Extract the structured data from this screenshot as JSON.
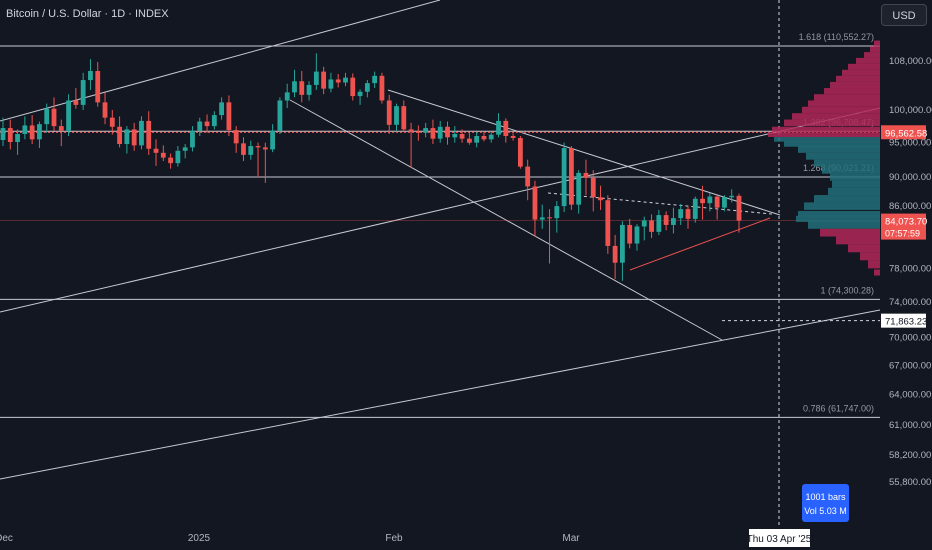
{
  "header": {
    "title": "Bitcoin / U.S. Dollar · 1D · INDEX",
    "currency": "USD"
  },
  "badge": {
    "bars": "1001 bars",
    "vol": "Vol 5.03 M"
  },
  "colors": {
    "background": "#131722",
    "up": "#26a69a",
    "down": "#ef5350",
    "grid_line": "#b2b5be",
    "profile": "#b02757",
    "profile_value_area": "#22707a",
    "badge_blue": "#2962ff"
  },
  "chart_data": {
    "type": "candlestick",
    "title": "Bitcoin / U.S. Dollar · 1D · INDEX",
    "y_scale": "log",
    "ylim": [
      54000,
      112000
    ],
    "y_ticks": [
      {
        "value": 108000,
        "label": "108,000.00"
      },
      {
        "value": 100000,
        "label": "100,000.00"
      },
      {
        "value": 95000,
        "label": "95,000.00"
      },
      {
        "value": 90000,
        "label": "90,000.00"
      },
      {
        "value": 86000,
        "label": "86,000.00"
      },
      {
        "value": 78000,
        "label": "78,000.00"
      },
      {
        "value": 74000,
        "label": "74,000.00"
      },
      {
        "value": 70000,
        "label": "70,000.00"
      },
      {
        "value": 67000,
        "label": "67,000.00"
      },
      {
        "value": 64000,
        "label": "64,000.00"
      },
      {
        "value": 61000,
        "label": "61,000.00"
      },
      {
        "value": 58200,
        "label": "58,200.00"
      },
      {
        "value": 55800,
        "label": "55,800.00"
      }
    ],
    "x_ticks": [
      "Dec",
      "2025",
      "Feb",
      "Mar"
    ],
    "x_cursor_label": "Thu 03 Apr '25",
    "price_labels": [
      {
        "value": 96562.58,
        "label": "96,562.58",
        "kind": "marker"
      },
      {
        "value": 84073.7,
        "label": "84,073.70",
        "kind": "last",
        "countdown": "07:57:59"
      },
      {
        "value": 71863.23,
        "label": "71,863.23",
        "kind": "crosshair"
      }
    ],
    "fib_levels": [
      {
        "ratio": "1.618",
        "price": 110552.27,
        "label": "1.618 (110,552.27)"
      },
      {
        "ratio": "1.382",
        "price": 96708.47,
        "label": "1.382 (96,708.47)"
      },
      {
        "ratio": "1.268",
        "price": 90021.21,
        "label": "1.268 (90,021.21)"
      },
      {
        "ratio": "1",
        "price": 74300.28,
        "label": "1 (74,300.28)"
      },
      {
        "ratio": "0.786",
        "price": 61747.0,
        "label": "0.786 (61,747.00)"
      }
    ],
    "candles": [
      {
        "o": 95400,
        "h": 98800,
        "l": 94500,
        "c": 97200
      },
      {
        "o": 97200,
        "h": 98500,
        "l": 94000,
        "c": 95100
      },
      {
        "o": 95100,
        "h": 97000,
        "l": 93200,
        "c": 96300
      },
      {
        "o": 96300,
        "h": 99000,
        "l": 95500,
        "c": 97600
      },
      {
        "o": 97600,
        "h": 99200,
        "l": 94800,
        "c": 95500
      },
      {
        "o": 95500,
        "h": 98200,
        "l": 94200,
        "c": 97800
      },
      {
        "o": 97800,
        "h": 101000,
        "l": 96500,
        "c": 100200
      },
      {
        "o": 100200,
        "h": 102000,
        "l": 96800,
        "c": 97500
      },
      {
        "o": 97500,
        "h": 98500,
        "l": 94500,
        "c": 96800
      },
      {
        "o": 96800,
        "h": 102500,
        "l": 96000,
        "c": 101500
      },
      {
        "o": 101500,
        "h": 103500,
        "l": 100200,
        "c": 100800
      },
      {
        "o": 100800,
        "h": 106000,
        "l": 100000,
        "c": 104800
      },
      {
        "o": 104800,
        "h": 108300,
        "l": 103200,
        "c": 106300
      },
      {
        "o": 106300,
        "h": 107800,
        "l": 100500,
        "c": 101200
      },
      {
        "o": 101200,
        "h": 102800,
        "l": 97800,
        "c": 98800
      },
      {
        "o": 98800,
        "h": 100000,
        "l": 96200,
        "c": 97400
      },
      {
        "o": 97400,
        "h": 99000,
        "l": 94300,
        "c": 94800
      },
      {
        "o": 94800,
        "h": 97500,
        "l": 93400,
        "c": 97000
      },
      {
        "o": 97000,
        "h": 98000,
        "l": 93800,
        "c": 94600
      },
      {
        "o": 94600,
        "h": 99000,
        "l": 94000,
        "c": 98300
      },
      {
        "o": 98300,
        "h": 99800,
        "l": 93200,
        "c": 94100
      },
      {
        "o": 94100,
        "h": 95500,
        "l": 91600,
        "c": 93500
      },
      {
        "o": 93500,
        "h": 94600,
        "l": 92300,
        "c": 92800
      },
      {
        "o": 92800,
        "h": 93400,
        "l": 91200,
        "c": 92000
      },
      {
        "o": 92000,
        "h": 94500,
        "l": 91500,
        "c": 93800
      },
      {
        "o": 93800,
        "h": 94800,
        "l": 92700,
        "c": 94300
      },
      {
        "o": 94300,
        "h": 97500,
        "l": 93700,
        "c": 96800
      },
      {
        "o": 96800,
        "h": 98800,
        "l": 96000,
        "c": 98200
      },
      {
        "o": 98200,
        "h": 99300,
        "l": 96500,
        "c": 97500
      },
      {
        "o": 97500,
        "h": 99800,
        "l": 97000,
        "c": 99200
      },
      {
        "o": 99200,
        "h": 102000,
        "l": 98500,
        "c": 101200
      },
      {
        "o": 101200,
        "h": 102300,
        "l": 96000,
        "c": 96900
      },
      {
        "o": 96900,
        "h": 97500,
        "l": 93500,
        "c": 94900
      },
      {
        "o": 94900,
        "h": 95800,
        "l": 92300,
        "c": 93200
      },
      {
        "o": 93200,
        "h": 95300,
        "l": 92500,
        "c": 94500
      },
      {
        "o": 94500,
        "h": 95000,
        "l": 90000,
        "c": 94300
      },
      {
        "o": 94300,
        "h": 95000,
        "l": 89200,
        "c": 94000
      },
      {
        "o": 94000,
        "h": 97800,
        "l": 93600,
        "c": 96800
      },
      {
        "o": 96800,
        "h": 102000,
        "l": 96300,
        "c": 101500
      },
      {
        "o": 101500,
        "h": 104200,
        "l": 100300,
        "c": 102800
      },
      {
        "o": 102800,
        "h": 106500,
        "l": 102000,
        "c": 104600
      },
      {
        "o": 104600,
        "h": 106300,
        "l": 101200,
        "c": 102400
      },
      {
        "o": 102400,
        "h": 104600,
        "l": 101500,
        "c": 104000
      },
      {
        "o": 104000,
        "h": 109300,
        "l": 103200,
        "c": 106200
      },
      {
        "o": 106200,
        "h": 107000,
        "l": 102500,
        "c": 103400
      },
      {
        "o": 103400,
        "h": 106000,
        "l": 102800,
        "c": 104900
      },
      {
        "o": 104900,
        "h": 105800,
        "l": 103600,
        "c": 104400
      },
      {
        "o": 104400,
        "h": 106000,
        "l": 103800,
        "c": 105200
      },
      {
        "o": 105200,
        "h": 105900,
        "l": 101500,
        "c": 102200
      },
      {
        "o": 102200,
        "h": 103300,
        "l": 100800,
        "c": 102900
      },
      {
        "o": 102900,
        "h": 104800,
        "l": 102000,
        "c": 104300
      },
      {
        "o": 104300,
        "h": 106200,
        "l": 103500,
        "c": 105500
      },
      {
        "o": 105500,
        "h": 106000,
        "l": 101000,
        "c": 101500
      },
      {
        "o": 101500,
        "h": 102400,
        "l": 96300,
        "c": 97700
      },
      {
        "o": 97700,
        "h": 101000,
        "l": 96700,
        "c": 100600
      },
      {
        "o": 100600,
        "h": 101500,
        "l": 96600,
        "c": 97000
      },
      {
        "o": 97000,
        "h": 98000,
        "l": 91300,
        "c": 96700
      },
      {
        "o": 96700,
        "h": 97600,
        "l": 95300,
        "c": 96500
      },
      {
        "o": 96500,
        "h": 98000,
        "l": 95800,
        "c": 97200
      },
      {
        "o": 97200,
        "h": 98500,
        "l": 94800,
        "c": 95600
      },
      {
        "o": 95600,
        "h": 98300,
        "l": 95000,
        "c": 97400
      },
      {
        "o": 97400,
        "h": 98200,
        "l": 94700,
        "c": 95800
      },
      {
        "o": 95800,
        "h": 97500,
        "l": 95000,
        "c": 96300
      },
      {
        "o": 96300,
        "h": 97000,
        "l": 95000,
        "c": 95600
      },
      {
        "o": 95600,
        "h": 96500,
        "l": 94700,
        "c": 95000
      },
      {
        "o": 95000,
        "h": 96600,
        "l": 94300,
        "c": 96000
      },
      {
        "o": 96000,
        "h": 96700,
        "l": 95200,
        "c": 95500
      },
      {
        "o": 95500,
        "h": 96600,
        "l": 95000,
        "c": 96200
      },
      {
        "o": 96200,
        "h": 99500,
        "l": 95800,
        "c": 98300
      },
      {
        "o": 98300,
        "h": 98700,
        "l": 95000,
        "c": 96000
      },
      {
        "o": 96000,
        "h": 96400,
        "l": 95300,
        "c": 95700
      },
      {
        "o": 95700,
        "h": 96000,
        "l": 91200,
        "c": 91500
      },
      {
        "o": 91500,
        "h": 92500,
        "l": 86800,
        "c": 88700
      },
      {
        "o": 88700,
        "h": 89500,
        "l": 82000,
        "c": 84200
      },
      {
        "o": 84200,
        "h": 86200,
        "l": 83000,
        "c": 84500
      },
      {
        "o": 84500,
        "h": 85600,
        "l": 78600,
        "c": 84400
      },
      {
        "o": 84400,
        "h": 86700,
        "l": 82500,
        "c": 86000
      },
      {
        "o": 86000,
        "h": 95000,
        "l": 85200,
        "c": 94200
      },
      {
        "o": 94200,
        "h": 94500,
        "l": 85500,
        "c": 86200
      },
      {
        "o": 86200,
        "h": 91000,
        "l": 85000,
        "c": 90600
      },
      {
        "o": 90600,
        "h": 92500,
        "l": 87500,
        "c": 89900
      },
      {
        "o": 89900,
        "h": 91000,
        "l": 85300,
        "c": 87200
      },
      {
        "o": 87200,
        "h": 88800,
        "l": 85500,
        "c": 86800
      },
      {
        "o": 86800,
        "h": 87500,
        "l": 79800,
        "c": 80800
      },
      {
        "o": 80800,
        "h": 82200,
        "l": 76700,
        "c": 78700
      },
      {
        "o": 78700,
        "h": 84000,
        "l": 76500,
        "c": 83500
      },
      {
        "o": 83500,
        "h": 84300,
        "l": 80500,
        "c": 81100
      },
      {
        "o": 81100,
        "h": 83600,
        "l": 80200,
        "c": 83300
      },
      {
        "o": 83300,
        "h": 84600,
        "l": 81500,
        "c": 84100
      },
      {
        "o": 84100,
        "h": 84900,
        "l": 81800,
        "c": 82600
      },
      {
        "o": 82600,
        "h": 85500,
        "l": 82200,
        "c": 84800
      },
      {
        "o": 84800,
        "h": 85300,
        "l": 82800,
        "c": 83500
      },
      {
        "o": 83500,
        "h": 85800,
        "l": 82400,
        "c": 84400
      },
      {
        "o": 84400,
        "h": 86300,
        "l": 83500,
        "c": 85600
      },
      {
        "o": 85600,
        "h": 86000,
        "l": 83000,
        "c": 84300
      },
      {
        "o": 84300,
        "h": 87300,
        "l": 83800,
        "c": 87000
      },
      {
        "o": 87000,
        "h": 88800,
        "l": 84200,
        "c": 86400
      },
      {
        "o": 86400,
        "h": 87800,
        "l": 85300,
        "c": 87300
      },
      {
        "o": 87300,
        "h": 87500,
        "l": 84200,
        "c": 85800
      },
      {
        "o": 85800,
        "h": 87500,
        "l": 85300,
        "c": 87200
      },
      {
        "o": 87200,
        "h": 88300,
        "l": 86500,
        "c": 87400
      },
      {
        "o": 87400,
        "h": 87700,
        "l": 82500,
        "c": 84073.7
      }
    ],
    "volume_profile": [
      [
        111000,
        6
      ],
      [
        110000,
        10
      ],
      [
        109000,
        16
      ],
      [
        108000,
        24
      ],
      [
        107000,
        32
      ],
      [
        106000,
        38
      ],
      [
        105000,
        44
      ],
      [
        104000,
        50
      ],
      [
        103000,
        56
      ],
      [
        102000,
        66
      ],
      [
        101000,
        72
      ],
      [
        100000,
        78
      ],
      [
        99000,
        88
      ],
      [
        98000,
        96
      ],
      [
        97000,
        108
      ],
      [
        96200,
        112
      ],
      [
        95500,
        106
      ],
      [
        94800,
        96
      ],
      [
        94000,
        82
      ],
      [
        93000,
        74
      ],
      [
        92000,
        66
      ],
      [
        91000,
        58
      ],
      [
        90000,
        50
      ],
      [
        89000,
        48
      ],
      [
        88000,
        52
      ],
      [
        87000,
        66
      ],
      [
        86000,
        76
      ],
      [
        85000,
        82
      ],
      [
        84300,
        84
      ],
      [
        83500,
        72
      ],
      [
        82500,
        60
      ],
      [
        81500,
        44
      ],
      [
        80500,
        32
      ],
      [
        79500,
        20
      ],
      [
        78500,
        12
      ],
      [
        77500,
        6
      ]
    ]
  }
}
